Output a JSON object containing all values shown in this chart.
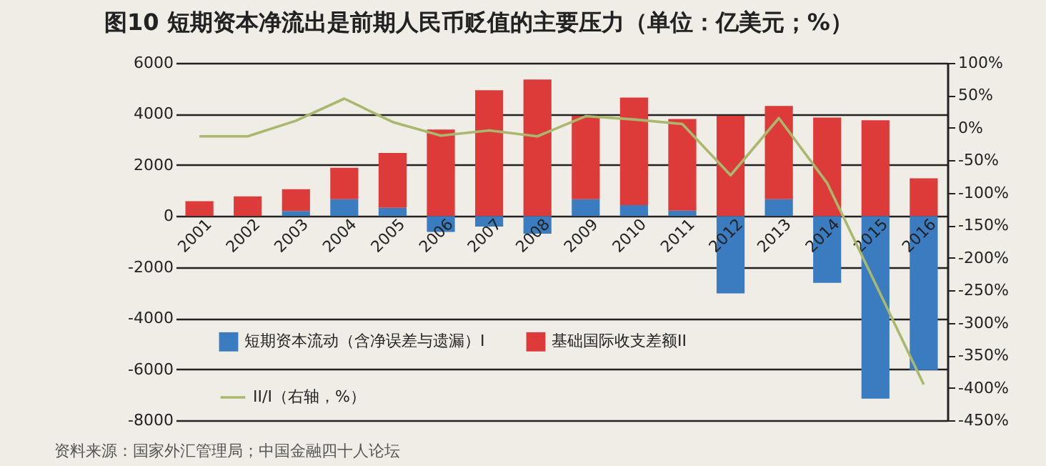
{
  "chart_data": {
    "type": "bar",
    "title": "图10 短期资本净流出是前期人民币贬值的主要压力（单位：亿美元；%）",
    "categories": [
      "2001",
      "2002",
      "2003",
      "2004",
      "2005",
      "2006",
      "2007",
      "2008",
      "2009",
      "2010",
      "2011",
      "2012",
      "2013",
      "2014",
      "2015",
      "2016"
    ],
    "series": [
      {
        "name": "短期资本流动（含净误差与遗漏）I",
        "color": "#3b7bbf",
        "values": [
          0,
          0,
          200,
          660,
          320,
          -620,
          -410,
          -690,
          660,
          430,
          210,
          -3030,
          660,
          -2620,
          -7150,
          -6030
        ]
      },
      {
        "name": "基础国际收支差额II",
        "color": "#dc3b3a",
        "values": [
          580,
          770,
          850,
          1230,
          2150,
          3390,
          4930,
          5350,
          3270,
          4210,
          3590,
          3930,
          3650,
          3860,
          3750,
          1480
        ]
      },
      {
        "name": "II/I（右轴，%）",
        "type": "line",
        "axis": "y2",
        "color": "#a9b86c",
        "values": [
          -13,
          -13,
          11,
          45,
          9,
          -12,
          -4,
          -13,
          18,
          13,
          6,
          -73,
          15,
          -85,
          -240,
          -395
        ]
      }
    ],
    "ylim": [
      -8000,
      6000
    ],
    "yticks": [
      -8000,
      -6000,
      -4000,
      -2000,
      0,
      2000,
      4000,
      6000
    ],
    "y2lim": [
      -450,
      100
    ],
    "y2ticks": [
      {
        "value": -450,
        "label": "-450%"
      },
      {
        "value": -400,
        "label": "-400%"
      },
      {
        "value": -350,
        "label": "-350%"
      },
      {
        "value": -300,
        "label": "-300%"
      },
      {
        "value": -250,
        "label": "-250%"
      },
      {
        "value": -200,
        "label": "-200%"
      },
      {
        "value": -150,
        "label": "-150%"
      },
      {
        "value": -100,
        "label": "-100%"
      },
      {
        "value": -50,
        "label": "-50%"
      },
      {
        "value": 0,
        "label": "0%"
      },
      {
        "value": 50,
        "label": "50%"
      },
      {
        "value": 100,
        "label": "100%"
      }
    ],
    "grid": true,
    "legend": "bottom left",
    "stacked": true,
    "annotations": [
      "资料来源：国家外汇管理局；中国金融四十人论坛"
    ]
  }
}
